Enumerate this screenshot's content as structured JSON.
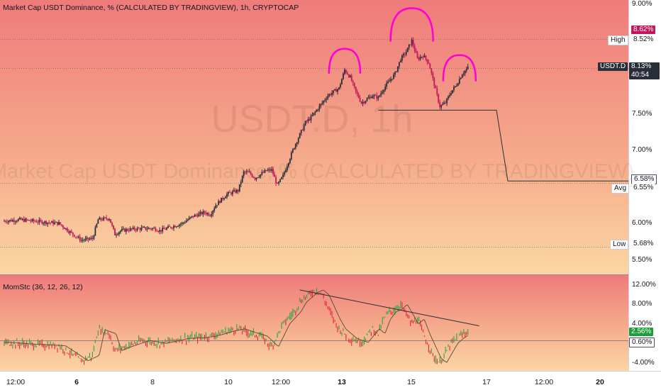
{
  "header": {
    "title": "Market Cap USDT Dominance, % (CALCULATED BY TRADINGVIEW), 1h, CRYPTOCAP",
    "indicator": "MomStc (36, 12, 26, 12)"
  },
  "watermark": {
    "symbol": "USDT.D, 1h",
    "name": "Market Cap USDT Dominance, % (CALCULATED BY TRADINGVIEW)"
  },
  "colors": {
    "bg_top": "#ef7a7a",
    "bg_bottom": "#fbd8a5",
    "up": "#26a641",
    "down": "#e0283a",
    "candle_up": "#2a2e39",
    "candle_down": "#c2185b",
    "pattern": "#ff00d4",
    "price_label_bg": "#2a2e39",
    "green_label": "#1e9e3a"
  },
  "price_axis": {
    "ticks": [
      "9.00%",
      "8.50%",
      "8.00%",
      "7.50%",
      "7.00%",
      "6.50%",
      "6.00%",
      "5.50%"
    ],
    "labels": {
      "high_tag": "High",
      "high_val": "8.52%",
      "top_val": "8.62%",
      "symbol_tag": "USDT.D",
      "last_val": "8.13%",
      "countdown": "40:54",
      "target_val": "6.58%",
      "avg_tag": "Avg",
      "avg_val": "6.55%",
      "low_tag": "Low",
      "low_val": "5.68%"
    }
  },
  "osc_axis": {
    "ticks": [
      "12.00%",
      "8.00%",
      "4.00%",
      "-4.00%"
    ],
    "labels": {
      "green_val": "2.56%",
      "zero_val": "0.60%"
    }
  },
  "x_axis": {
    "ticks": [
      {
        "label": "12:00",
        "bold": false
      },
      {
        "label": "6",
        "bold": true
      },
      {
        "label": "8",
        "bold": false
      },
      {
        "label": "10",
        "bold": false
      },
      {
        "label": "12:00",
        "bold": false
      },
      {
        "label": "13",
        "bold": true
      },
      {
        "label": "15",
        "bold": false
      },
      {
        "label": "17",
        "bold": false
      },
      {
        "label": "12:00",
        "bold": false
      },
      {
        "label": "20",
        "bold": true
      }
    ]
  },
  "chart_data": [
    {
      "type": "candlestick",
      "title": "Market Cap USDT Dominance, % (CALCULATED BY TRADINGVIEW), 1h, CRYPTOCAP",
      "x": [
        "12:00",
        "6",
        "8",
        "10",
        "12:00",
        "13",
        "15",
        "17",
        "12:00",
        "20"
      ],
      "ylim": [
        5.25,
        9.05
      ],
      "price_path": [
        [
          0,
          6.03
        ],
        [
          3,
          6.05
        ],
        [
          7,
          6.02
        ],
        [
          10,
          6.0
        ],
        [
          12,
          5.88
        ],
        [
          14,
          5.77
        ],
        [
          16,
          5.79
        ],
        [
          17,
          6.05
        ],
        [
          19,
          6.07
        ],
        [
          20,
          5.85
        ],
        [
          21,
          5.9
        ],
        [
          23,
          5.92
        ],
        [
          25,
          5.93
        ],
        [
          27,
          5.93
        ],
        [
          28,
          5.9
        ],
        [
          30,
          5.95
        ],
        [
          32,
          6.0
        ],
        [
          34,
          6.1
        ],
        [
          36,
          6.15
        ],
        [
          37,
          6.12
        ],
        [
          38,
          6.25
        ],
        [
          40,
          6.4
        ],
        [
          42,
          6.45
        ],
        [
          43,
          6.7
        ],
        [
          44,
          6.69
        ],
        [
          45,
          6.62
        ],
        [
          47,
          6.72
        ],
        [
          48,
          6.73
        ],
        [
          49,
          6.52
        ],
        [
          50,
          6.65
        ],
        [
          52,
          7.05
        ],
        [
          54,
          7.38
        ],
        [
          55,
          7.45
        ],
        [
          57,
          7.65
        ],
        [
          58,
          7.75
        ],
        [
          60,
          7.85
        ],
        [
          61,
          8.1
        ],
        [
          62,
          8.0
        ],
        [
          63,
          7.8
        ],
        [
          64,
          7.65
        ],
        [
          65,
          7.7
        ],
        [
          66,
          7.75
        ],
        [
          67,
          7.72
        ],
        [
          68,
          7.85
        ],
        [
          69,
          7.95
        ],
        [
          70,
          8.05
        ],
        [
          71,
          8.25
        ],
        [
          72,
          8.35
        ],
        [
          73,
          8.5
        ],
        [
          74,
          8.25
        ],
        [
          75,
          8.3
        ],
        [
          76,
          8.2
        ],
        [
          77,
          7.9
        ],
        [
          78,
          7.6
        ],
        [
          79,
          7.65
        ],
        [
          80,
          7.8
        ],
        [
          81,
          7.9
        ],
        [
          82,
          8.05
        ],
        [
          83,
          8.13
        ]
      ],
      "projection": {
        "start": [
          67,
          7.55
        ],
        "level": 7.55,
        "end_level": 6.58
      },
      "pattern": "head-and-shoulders",
      "price_levels": {
        "high": 8.52,
        "top": 8.62,
        "last": 8.13,
        "target": 6.58,
        "avg": 6.55,
        "low": 5.68
      }
    },
    {
      "type": "bar",
      "title": "MomStc (36, 12, 26, 12)",
      "ylim": [
        -6.5,
        13.2
      ],
      "osc_path": [
        [
          0,
          0.2
        ],
        [
          5,
          -0.2
        ],
        [
          10,
          -0.5
        ],
        [
          12,
          -2.0
        ],
        [
          14,
          -3.6
        ],
        [
          16,
          -2.5
        ],
        [
          17,
          2.8
        ],
        [
          19,
          2.0
        ],
        [
          20,
          -1.5
        ],
        [
          21,
          -1.0
        ],
        [
          25,
          0.6
        ],
        [
          28,
          0.0
        ],
        [
          32,
          1.0
        ],
        [
          35,
          1.2
        ],
        [
          37,
          1.5
        ],
        [
          40,
          2.5
        ],
        [
          42,
          3.0
        ],
        [
          44,
          2.2
        ],
        [
          46,
          1.5
        ],
        [
          48,
          -0.7
        ],
        [
          50,
          4.0
        ],
        [
          52,
          6.5
        ],
        [
          53,
          8.5
        ],
        [
          54,
          9.5
        ],
        [
          55,
          10.5
        ],
        [
          56,
          11.0
        ],
        [
          57,
          10.0
        ],
        [
          59,
          5.0
        ],
        [
          60,
          3.0
        ],
        [
          62,
          1.0
        ],
        [
          64,
          0.2
        ],
        [
          66,
          3.0
        ],
        [
          67,
          2.0
        ],
        [
          68,
          5.0
        ],
        [
          69,
          6.5
        ],
        [
          70,
          7.0
        ],
        [
          71,
          8.0
        ],
        [
          72,
          6.0
        ],
        [
          73,
          4.0
        ],
        [
          74,
          5.0
        ],
        [
          75,
          2.0
        ],
        [
          76,
          -0.5
        ],
        [
          77,
          -3.0
        ],
        [
          78,
          -4.0
        ],
        [
          79,
          -2.0
        ],
        [
          80,
          0.0
        ],
        [
          81,
          1.0
        ],
        [
          83,
          2.56
        ]
      ],
      "trendline": [
        [
          53,
          11.0
        ],
        [
          85,
          3.6
        ]
      ],
      "levels": {
        "last": 2.56,
        "zero": 0.6
      }
    }
  ]
}
